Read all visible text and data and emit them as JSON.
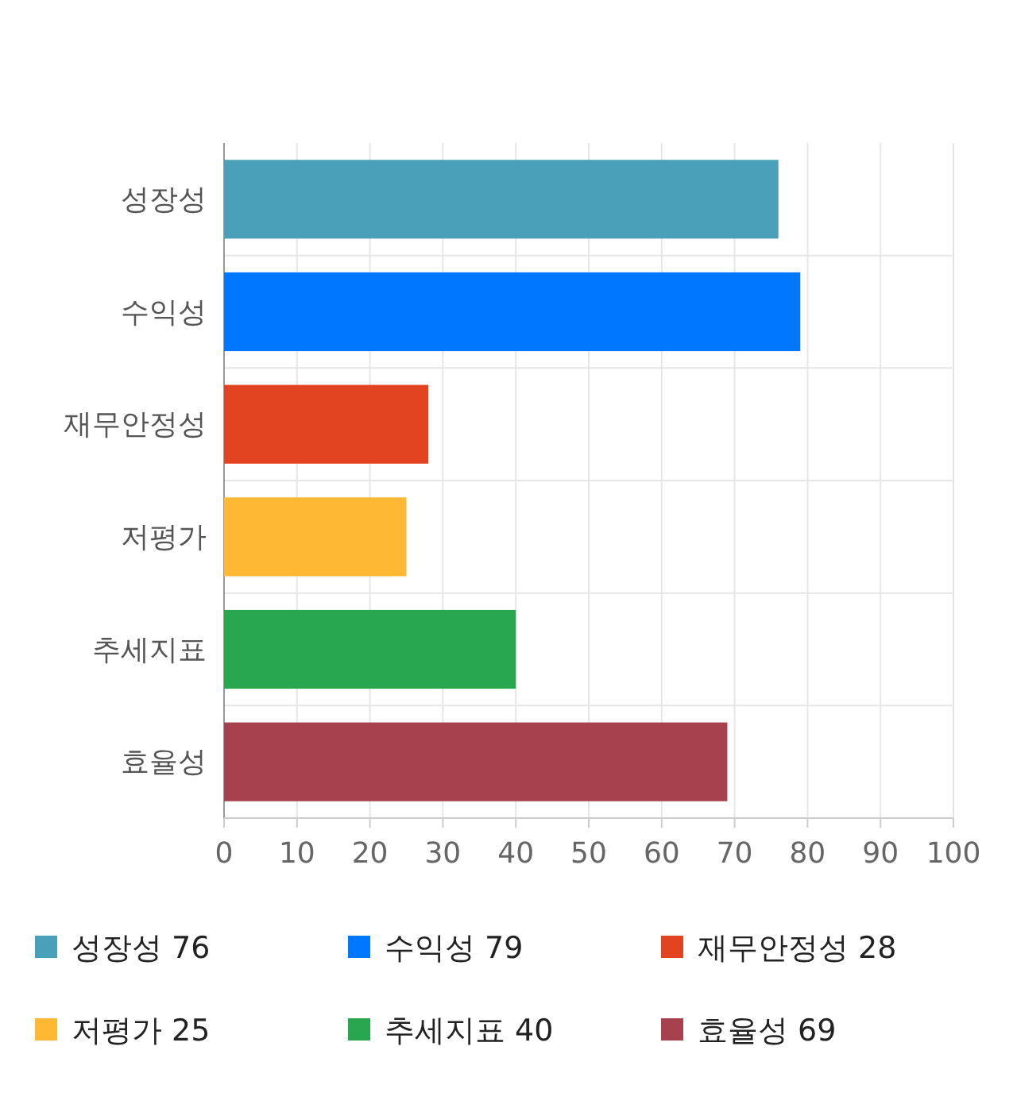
{
  "chart_data": {
    "type": "bar",
    "orientation": "horizontal",
    "categories": [
      "성장성",
      "수익성",
      "재무안정성",
      "저평가",
      "추세지표",
      "효율성"
    ],
    "series": [
      {
        "name": "성장성 76",
        "color": "#4aa0b8",
        "values": [
          76,
          null,
          null,
          null,
          null,
          null
        ]
      },
      {
        "name": "수익성 79",
        "color": "#0077ff",
        "values": [
          null,
          79,
          null,
          null,
          null,
          null
        ]
      },
      {
        "name": "재무안정성 28",
        "color": "#e24422",
        "values": [
          null,
          null,
          28,
          null,
          null,
          null
        ]
      },
      {
        "name": "저평가 25",
        "color": "#ffb833",
        "values": [
          null,
          null,
          null,
          25,
          null,
          null
        ]
      },
      {
        "name": "추세지표 40",
        "color": "#29a74f",
        "values": [
          null,
          null,
          null,
          null,
          40,
          null
        ]
      },
      {
        "name": "효율성 69",
        "color": "#a8414e",
        "values": [
          null,
          null,
          null,
          null,
          null,
          69
        ]
      }
    ],
    "xlim": [
      0,
      100
    ],
    "xticks": [
      0,
      10,
      20,
      30,
      40,
      50,
      60,
      70,
      80,
      90,
      100
    ],
    "grid": true,
    "legend": "bottom"
  }
}
